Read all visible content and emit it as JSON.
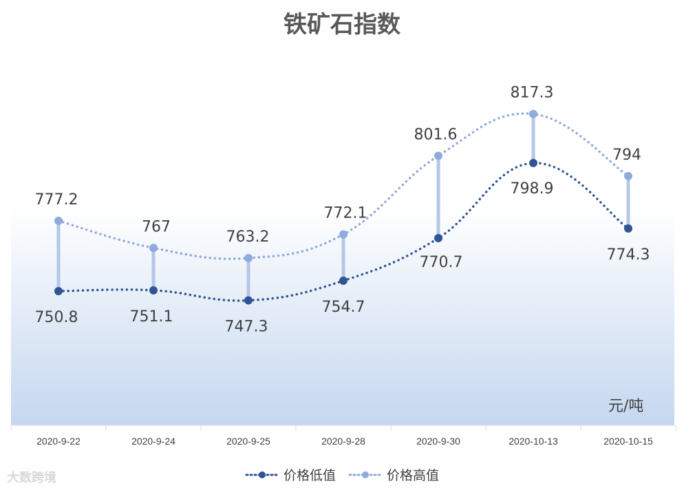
{
  "watermark": "大数跨境",
  "chart_data": {
    "type": "line",
    "title": "铁矿石指数",
    "unit": "元/吨",
    "categories": [
      "2020-9-22",
      "2020-9-24",
      "2020-9-25",
      "2020-9-28",
      "2020-9-30",
      "2020-10-13",
      "2020-10-15"
    ],
    "series": [
      {
        "name": "价格低值",
        "values": [
          750.8,
          751.1,
          747.3,
          754.7,
          770.7,
          798.9,
          774.3
        ],
        "color": "#2f5597",
        "labels": [
          "750.8",
          "751.1",
          "747.3",
          "754.7",
          "770.7",
          "798.9",
          "774.3"
        ]
      },
      {
        "name": "价格高值",
        "values": [
          777.2,
          767,
          763.2,
          772.1,
          801.6,
          817.3,
          794
        ],
        "color": "#8faadc",
        "labels": [
          "777.2",
          "767",
          "763.2",
          "772.1",
          "801.6",
          "817.3",
          "794"
        ]
      }
    ],
    "high_low_lines": true,
    "smooth": true,
    "legend": "bottom",
    "grid": false,
    "background": "gradient white to light blue"
  }
}
